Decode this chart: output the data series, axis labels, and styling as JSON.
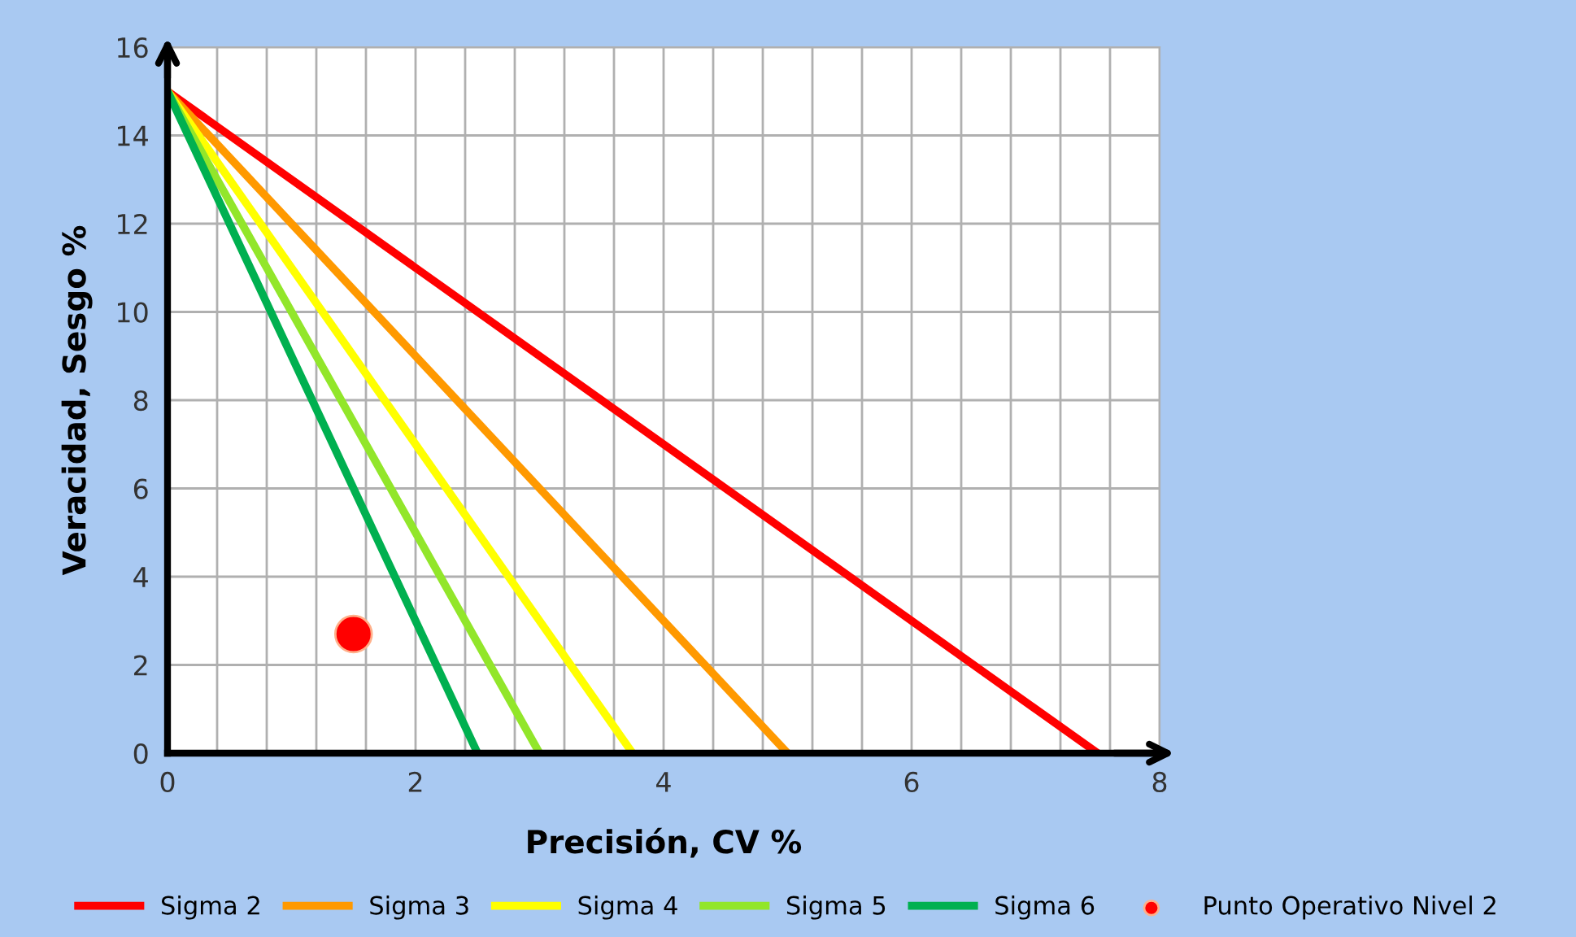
{
  "chart_data": {
    "type": "line",
    "xlabel": "Precisión, CV %",
    "ylabel": "Veracidad, Sesgo %",
    "xlim": [
      0,
      8
    ],
    "ylim": [
      0,
      16
    ],
    "xticks": [
      0,
      {
        "value": 0.4,
        "label": null
      },
      {
        "value": 0.8,
        "label": null
      },
      {
        "value": 1.2,
        "label": null
      },
      {
        "value": 1.6,
        "label": null
      },
      2,
      {
        "value": 2.4,
        "label": null
      },
      {
        "value": 2.8,
        "label": null
      },
      {
        "value": 3.2,
        "label": null
      },
      {
        "value": 3.6,
        "label": null
      },
      4,
      {
        "value": 4.4,
        "label": null
      },
      {
        "value": 4.8,
        "label": null
      },
      {
        "value": 5.2,
        "label": null
      },
      {
        "value": 5.6,
        "label": null
      },
      6,
      {
        "value": 6.4,
        "label": null
      },
      {
        "value": 6.8,
        "label": null
      },
      {
        "value": 7.2,
        "label": null
      },
      {
        "value": 7.6,
        "label": null
      },
      8
    ],
    "yticks": [
      0,
      2,
      4,
      6,
      8,
      10,
      12,
      14,
      16
    ],
    "grid": true,
    "legend": "bottom",
    "series": [
      {
        "name": "Sigma 2",
        "color": "#ff0000",
        "x": [
          0,
          7.5
        ],
        "values": [
          15,
          0
        ]
      },
      {
        "name": "Sigma 3",
        "color": "#ff9900",
        "x": [
          0,
          5
        ],
        "values": [
          15,
          0
        ]
      },
      {
        "name": "Sigma 4",
        "color": "#ffff00",
        "x": [
          0,
          3.75
        ],
        "values": [
          15,
          0
        ]
      },
      {
        "name": "Sigma 5",
        "color": "#92e62a",
        "x": [
          0,
          3
        ],
        "values": [
          15,
          0
        ]
      },
      {
        "name": "Sigma 6",
        "color": "#00b050",
        "x": [
          0,
          2.5
        ],
        "values": [
          15,
          0
        ]
      },
      {
        "name": "Punto Operativo Nivel 2",
        "type": "scatter",
        "marker": "circle",
        "color": "#ff0000",
        "x": [
          1.5
        ],
        "values": [
          2.7
        ]
      }
    ]
  }
}
